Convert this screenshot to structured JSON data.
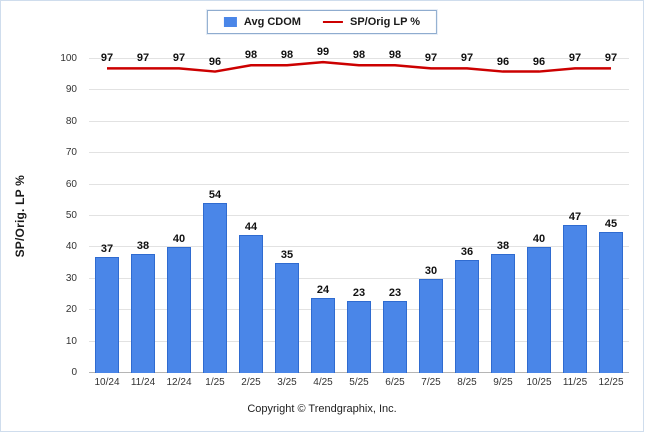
{
  "legend": {
    "items": [
      {
        "label": "Avg CDOM",
        "swatch": "square",
        "color": "#4a86e8"
      },
      {
        "label": "SP/Orig LP %",
        "swatch": "line",
        "color": "#cc0000"
      }
    ]
  },
  "chart_data": {
    "type": "bar",
    "categories": [
      "10/24",
      "11/24",
      "12/24",
      "1/25",
      "2/25",
      "3/25",
      "4/25",
      "5/25",
      "6/25",
      "7/25",
      "8/25",
      "9/25",
      "10/25",
      "11/25",
      "12/25"
    ],
    "series": [
      {
        "name": "Avg CDOM",
        "type": "bar",
        "color": "#4a86e8",
        "values": [
          37,
          38,
          40,
          54,
          44,
          35,
          24,
          23,
          23,
          30,
          36,
          38,
          40,
          47,
          45
        ]
      },
      {
        "name": "SP/Orig LP %",
        "type": "line",
        "color": "#cc0000",
        "values": [
          97,
          97,
          97,
          96,
          98,
          98,
          99,
          98,
          98,
          97,
          97,
          96,
          96,
          97,
          97
        ]
      }
    ],
    "title": "",
    "xlabel": "",
    "ylabel": "SP/Orig. LP %",
    "ylim": [
      0,
      100
    ],
    "yticks": [
      0,
      10,
      20,
      30,
      40,
      50,
      60,
      70,
      80,
      90,
      100
    ],
    "grid": true,
    "legend_position": "top-center"
  },
  "footer": {
    "copyright": "Copyright © Trendgraphix, Inc."
  }
}
